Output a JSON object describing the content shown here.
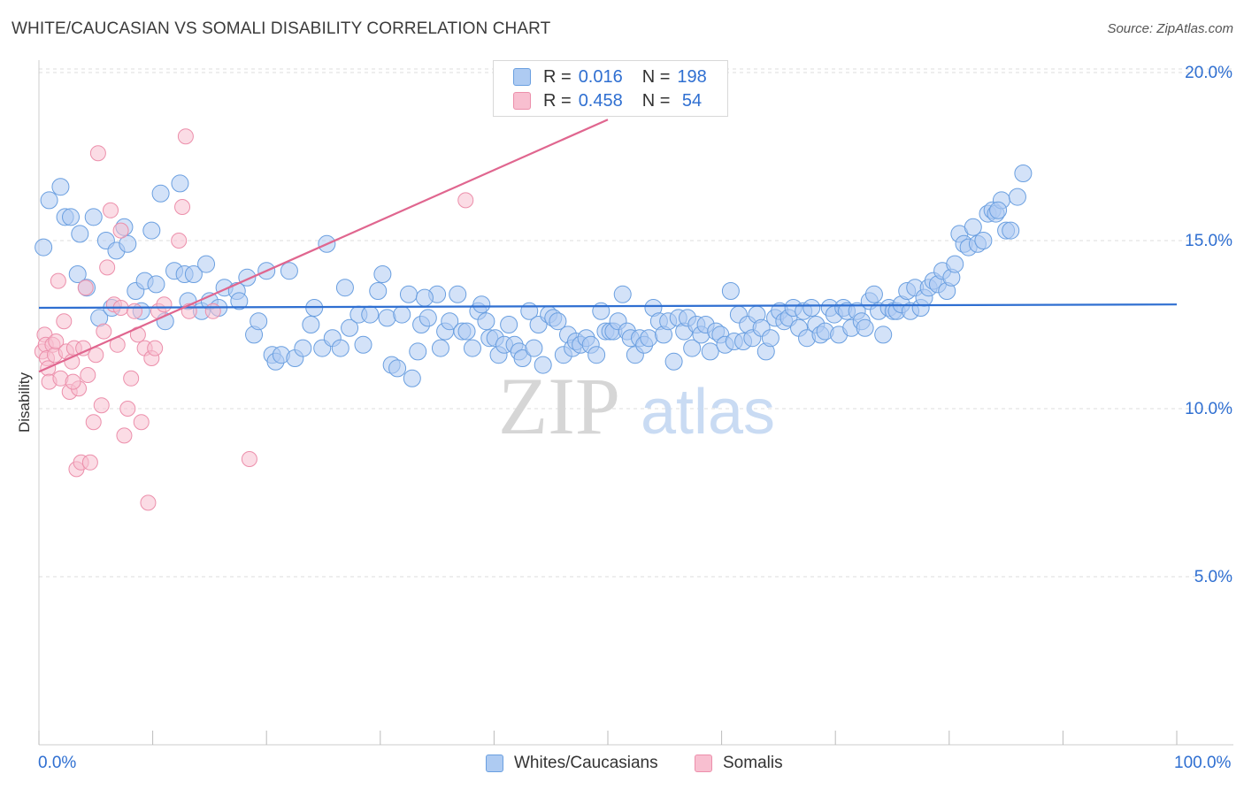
{
  "header": {
    "title": "WHITE/CAUCASIAN VS SOMALI DISABILITY CORRELATION CHART",
    "source": "Source: ZipAtlas.com"
  },
  "watermark": {
    "zip": "ZIP",
    "atlas": "atlas"
  },
  "legend": {
    "r_label": "R = ",
    "n_label": "N = ",
    "rows": [
      {
        "r": "0.016",
        "n": "198"
      },
      {
        "r": "0.458",
        "n": " 54"
      }
    ]
  },
  "colors": {
    "blue_fill": "#aecbf2",
    "blue_stroke": "#6a9fe0",
    "blue_line": "#2f6fd1",
    "pink_fill": "#f8bfd0",
    "pink_stroke": "#ec8fab",
    "pink_line": "#e0668f",
    "axis_text": "#2f6fd1",
    "grid": "#dddddd"
  },
  "chart_data": {
    "type": "scatter",
    "title": "WHITE/CAUCASIAN VS SOMALI DISABILITY CORRELATION CHART",
    "xlabel": "",
    "ylabel": "Disability",
    "xlim": [
      0,
      100
    ],
    "ylim": [
      0,
      20.5
    ],
    "x_tick_labels": {
      "min": "0.0%",
      "max": "100.0%"
    },
    "y_ticks": [
      {
        "value": 5,
        "label": "5.0%"
      },
      {
        "value": 10,
        "label": "10.0%"
      },
      {
        "value": 15,
        "label": "15.0%"
      },
      {
        "value": 20,
        "label": "20.0%"
      }
    ],
    "series": [
      {
        "name": "Whites/Caucasians",
        "R": 0.016,
        "N": 198,
        "trend": {
          "x": [
            0,
            100
          ],
          "y": [
            13.0,
            13.1
          ]
        },
        "points": [
          [
            0.4,
            14.8
          ],
          [
            0.9,
            16.2
          ],
          [
            1.9,
            16.6
          ],
          [
            2.3,
            15.7
          ],
          [
            2.8,
            15.7
          ],
          [
            3.4,
            14.0
          ],
          [
            3.6,
            15.2
          ],
          [
            4.2,
            13.6
          ],
          [
            4.8,
            15.7
          ],
          [
            5.3,
            12.7
          ],
          [
            5.9,
            15.0
          ],
          [
            6.4,
            13.0
          ],
          [
            6.8,
            14.7
          ],
          [
            7.5,
            15.4
          ],
          [
            7.8,
            14.9
          ],
          [
            8.5,
            13.5
          ],
          [
            9.0,
            12.9
          ],
          [
            9.3,
            13.8
          ],
          [
            9.9,
            15.3
          ],
          [
            10.3,
            13.7
          ],
          [
            10.7,
            16.4
          ],
          [
            11.1,
            12.6
          ],
          [
            11.9,
            14.1
          ],
          [
            12.4,
            16.7
          ],
          [
            12.8,
            14.0
          ],
          [
            13.1,
            13.2
          ],
          [
            13.6,
            14.0
          ],
          [
            14.3,
            12.9
          ],
          [
            14.7,
            14.3
          ],
          [
            15.0,
            13.2
          ],
          [
            15.8,
            13.0
          ],
          [
            16.3,
            13.6
          ],
          [
            17.4,
            13.5
          ],
          [
            17.6,
            13.2
          ],
          [
            18.3,
            13.9
          ],
          [
            18.9,
            12.2
          ],
          [
            19.3,
            12.6
          ],
          [
            20.0,
            14.1
          ],
          [
            20.5,
            11.6
          ],
          [
            20.8,
            11.4
          ],
          [
            21.3,
            11.6
          ],
          [
            22.0,
            14.1
          ],
          [
            22.5,
            11.5
          ],
          [
            23.2,
            11.8
          ],
          [
            23.9,
            12.5
          ],
          [
            24.2,
            13.0
          ],
          [
            24.9,
            11.8
          ],
          [
            25.3,
            14.9
          ],
          [
            25.8,
            12.1
          ],
          [
            26.5,
            11.8
          ],
          [
            27.3,
            12.4
          ],
          [
            28.1,
            12.8
          ],
          [
            28.5,
            11.9
          ],
          [
            29.1,
            12.8
          ],
          [
            29.8,
            13.5
          ],
          [
            30.2,
            14.0
          ],
          [
            30.6,
            12.7
          ],
          [
            31.0,
            11.3
          ],
          [
            31.5,
            11.2
          ],
          [
            31.9,
            12.8
          ],
          [
            32.5,
            13.4
          ],
          [
            32.8,
            10.9
          ],
          [
            33.3,
            11.7
          ],
          [
            33.6,
            12.5
          ],
          [
            34.2,
            12.7
          ],
          [
            35.0,
            13.4
          ],
          [
            35.3,
            11.8
          ],
          [
            35.7,
            12.3
          ],
          [
            36.1,
            12.6
          ],
          [
            36.8,
            13.4
          ],
          [
            37.2,
            12.3
          ],
          [
            37.6,
            12.3
          ],
          [
            38.1,
            11.8
          ],
          [
            38.6,
            12.9
          ],
          [
            38.9,
            13.1
          ],
          [
            39.3,
            12.6
          ],
          [
            39.6,
            12.1
          ],
          [
            40.1,
            12.1
          ],
          [
            40.4,
            11.6
          ],
          [
            40.9,
            11.9
          ],
          [
            41.3,
            12.5
          ],
          [
            41.8,
            11.9
          ],
          [
            42.2,
            11.7
          ],
          [
            42.5,
            11.5
          ],
          [
            43.1,
            12.9
          ],
          [
            43.5,
            11.8
          ],
          [
            43.9,
            12.5
          ],
          [
            44.3,
            11.3
          ],
          [
            44.8,
            12.8
          ],
          [
            45.2,
            12.7
          ],
          [
            45.6,
            12.6
          ],
          [
            46.1,
            11.6
          ],
          [
            46.5,
            12.2
          ],
          [
            46.9,
            11.8
          ],
          [
            47.2,
            12.0
          ],
          [
            47.6,
            11.9
          ],
          [
            48.1,
            12.1
          ],
          [
            48.5,
            11.9
          ],
          [
            49.0,
            11.6
          ],
          [
            49.4,
            12.9
          ],
          [
            49.8,
            12.3
          ],
          [
            50.2,
            12.3
          ],
          [
            50.5,
            12.3
          ],
          [
            50.9,
            12.6
          ],
          [
            51.3,
            13.4
          ],
          [
            51.7,
            12.3
          ],
          [
            52.0,
            12.1
          ],
          [
            52.4,
            11.6
          ],
          [
            52.8,
            12.1
          ],
          [
            53.2,
            11.9
          ],
          [
            53.6,
            12.1
          ],
          [
            54.0,
            13.0
          ],
          [
            54.5,
            12.6
          ],
          [
            54.9,
            12.2
          ],
          [
            55.3,
            12.6
          ],
          [
            55.8,
            11.4
          ],
          [
            56.2,
            12.7
          ],
          [
            56.7,
            12.3
          ],
          [
            57.0,
            12.7
          ],
          [
            57.4,
            11.8
          ],
          [
            57.8,
            12.5
          ],
          [
            58.2,
            12.2
          ],
          [
            58.6,
            12.5
          ],
          [
            59.0,
            11.7
          ],
          [
            59.5,
            12.3
          ],
          [
            59.9,
            12.2
          ],
          [
            60.3,
            11.9
          ],
          [
            60.8,
            13.5
          ],
          [
            61.1,
            12.0
          ],
          [
            61.5,
            12.8
          ],
          [
            61.9,
            12.0
          ],
          [
            62.3,
            12.5
          ],
          [
            62.7,
            12.1
          ],
          [
            63.1,
            12.8
          ],
          [
            63.5,
            12.4
          ],
          [
            63.9,
            11.7
          ],
          [
            64.3,
            12.1
          ],
          [
            64.7,
            12.7
          ],
          [
            65.1,
            12.9
          ],
          [
            65.5,
            12.6
          ],
          [
            65.9,
            12.7
          ],
          [
            66.3,
            13.0
          ],
          [
            66.8,
            12.4
          ],
          [
            67.2,
            12.9
          ],
          [
            67.5,
            12.1
          ],
          [
            67.9,
            13.0
          ],
          [
            68.3,
            12.5
          ],
          [
            68.7,
            12.2
          ],
          [
            69.1,
            12.3
          ],
          [
            69.5,
            13.0
          ],
          [
            69.9,
            12.8
          ],
          [
            70.3,
            12.2
          ],
          [
            70.7,
            13.0
          ],
          [
            71.0,
            12.9
          ],
          [
            71.4,
            12.4
          ],
          [
            71.9,
            12.9
          ],
          [
            72.3,
            12.6
          ],
          [
            72.6,
            12.4
          ],
          [
            73.0,
            13.2
          ],
          [
            73.4,
            13.4
          ],
          [
            73.8,
            12.9
          ],
          [
            74.2,
            12.2
          ],
          [
            74.7,
            13.0
          ],
          [
            75.1,
            12.9
          ],
          [
            75.4,
            12.9
          ],
          [
            75.8,
            13.1
          ],
          [
            76.3,
            13.5
          ],
          [
            76.6,
            12.9
          ],
          [
            77.0,
            13.6
          ],
          [
            77.5,
            13.0
          ],
          [
            77.8,
            13.3
          ],
          [
            78.2,
            13.6
          ],
          [
            78.6,
            13.8
          ],
          [
            79.0,
            13.7
          ],
          [
            79.4,
            14.1
          ],
          [
            79.8,
            13.5
          ],
          [
            80.2,
            13.9
          ],
          [
            80.5,
            14.3
          ],
          [
            80.9,
            15.2
          ],
          [
            81.3,
            14.9
          ],
          [
            81.7,
            14.8
          ],
          [
            82.1,
            15.4
          ],
          [
            82.5,
            14.9
          ],
          [
            83.0,
            15.0
          ],
          [
            83.4,
            15.8
          ],
          [
            83.8,
            15.9
          ],
          [
            84.1,
            15.8
          ],
          [
            84.6,
            16.2
          ],
          [
            85.0,
            15.3
          ],
          [
            85.4,
            15.3
          ],
          [
            86.0,
            16.3
          ],
          [
            86.5,
            17.0
          ],
          [
            84.3,
            15.9
          ],
          [
            33.9,
            13.3
          ],
          [
            26.9,
            13.6
          ]
        ]
      },
      {
        "name": "Somalis",
        "R": 0.458,
        "N": 54,
        "trend": {
          "x": [
            0,
            50
          ],
          "y": [
            11.1,
            18.6
          ]
        },
        "points": [
          [
            0.3,
            11.7
          ],
          [
            0.5,
            12.2
          ],
          [
            0.6,
            11.9
          ],
          [
            0.7,
            11.5
          ],
          [
            0.8,
            11.2
          ],
          [
            0.9,
            10.8
          ],
          [
            1.2,
            11.9
          ],
          [
            1.4,
            11.6
          ],
          [
            1.5,
            12.0
          ],
          [
            1.7,
            13.8
          ],
          [
            1.9,
            10.9
          ],
          [
            2.2,
            12.6
          ],
          [
            2.4,
            11.7
          ],
          [
            2.7,
            10.5
          ],
          [
            2.9,
            11.4
          ],
          [
            3.1,
            11.8
          ],
          [
            3.3,
            8.2
          ],
          [
            3.5,
            10.6
          ],
          [
            3.7,
            8.4
          ],
          [
            3.9,
            11.8
          ],
          [
            4.1,
            13.6
          ],
          [
            4.3,
            11.0
          ],
          [
            4.5,
            8.4
          ],
          [
            4.8,
            9.6
          ],
          [
            5.0,
            11.6
          ],
          [
            5.2,
            17.6
          ],
          [
            5.5,
            10.1
          ],
          [
            5.7,
            12.3
          ],
          [
            6.0,
            14.2
          ],
          [
            6.3,
            15.9
          ],
          [
            6.6,
            13.1
          ],
          [
            6.9,
            11.9
          ],
          [
            7.2,
            13.0
          ],
          [
            7.5,
            9.2
          ],
          [
            7.8,
            10.0
          ],
          [
            8.1,
            10.9
          ],
          [
            8.4,
            12.9
          ],
          [
            8.7,
            12.2
          ],
          [
            9.0,
            9.6
          ],
          [
            9.3,
            11.8
          ],
          [
            9.6,
            7.2
          ],
          [
            9.9,
            11.5
          ],
          [
            10.2,
            11.8
          ],
          [
            10.5,
            12.9
          ],
          [
            11.0,
            13.1
          ],
          [
            12.3,
            15.0
          ],
          [
            12.6,
            16.0
          ],
          [
            12.9,
            18.1
          ],
          [
            13.2,
            12.9
          ],
          [
            15.3,
            12.9
          ],
          [
            18.5,
            8.5
          ],
          [
            37.5,
            16.2
          ],
          [
            7.2,
            15.3
          ],
          [
            3.0,
            10.8
          ]
        ]
      }
    ]
  },
  "bottom_legend": {
    "items": [
      "Whites/Caucasians",
      "Somalis"
    ]
  }
}
